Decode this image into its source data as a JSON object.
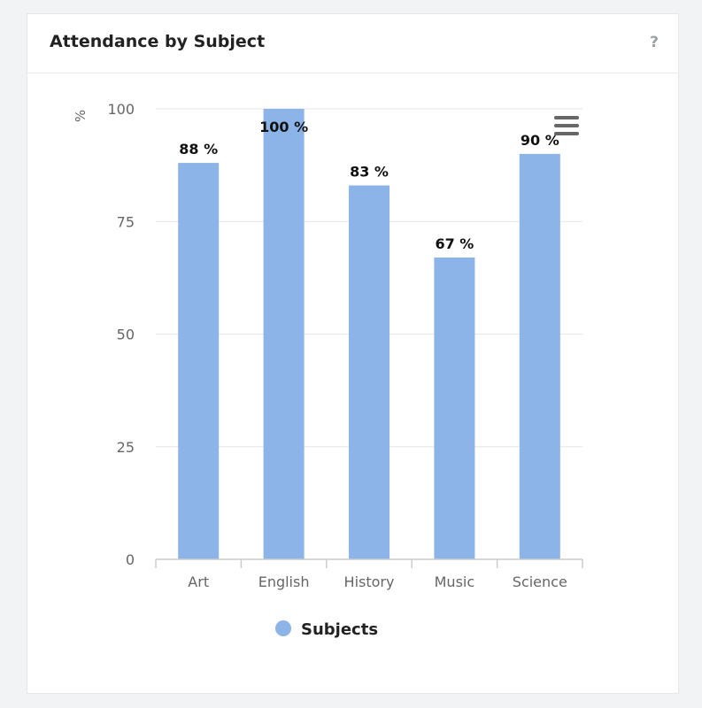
{
  "card": {
    "title": "Attendance by Subject",
    "help_label": "?"
  },
  "chart_data": {
    "type": "bar",
    "categories": [
      "Art",
      "English",
      "History",
      "Music",
      "Science"
    ],
    "series": [
      {
        "name": "Subjects",
        "values": [
          88,
          100,
          83,
          67,
          90
        ],
        "color": "#8cb4e8"
      }
    ],
    "data_labels": [
      "88 %",
      "100 %",
      "83 %",
      "67 %",
      "90 %"
    ],
    "ylabel": "%",
    "ylim": [
      0,
      100
    ],
    "yticks": [
      0,
      25,
      50,
      75,
      100
    ],
    "grid": true,
    "legend": "bottom-center"
  },
  "colors": {
    "bar": "#8cb4e8",
    "grid": "#e6e6e6",
    "axis_text": "#666666",
    "label_text": "#111111",
    "menu_icon": "#666666"
  },
  "icons": {
    "menu": "hamburger-menu-icon",
    "help": "help-icon"
  }
}
